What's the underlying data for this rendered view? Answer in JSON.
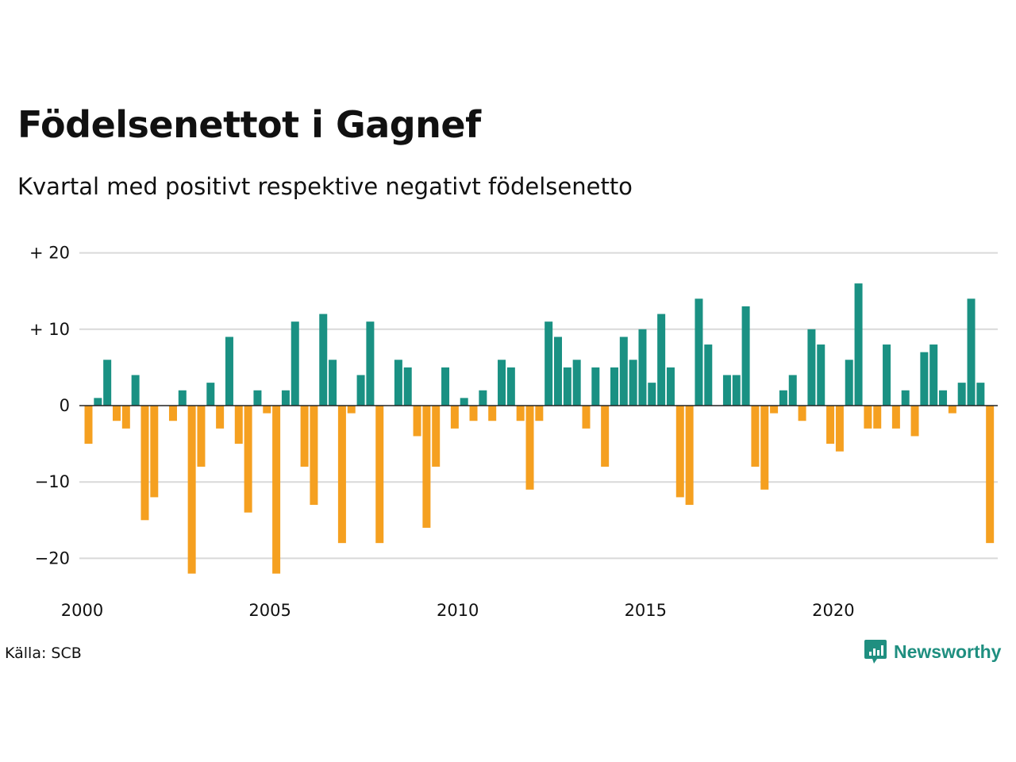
{
  "header": {
    "title": "Födelsenettot i Gagnef",
    "subtitle": "Kvartal med positivt respektive negativt födelsenetto"
  },
  "footer": {
    "source": "Källa: SCB",
    "brand": "Newsworthy",
    "brand_icon": "newsworthy-logo-icon"
  },
  "colors": {
    "positive": "#1a9183",
    "negative": "#f5a020",
    "grid": "#d9d9d9",
    "zero_line": "#222222",
    "brand": "#1f8f80"
  },
  "chart_data": {
    "type": "bar",
    "title": "Födelsenettot i Gagnef",
    "subtitle": "Kvartal med positivt respektive negativt födelsenetto",
    "xlabel": "",
    "ylabel": "",
    "ylim": [
      -24,
      22
    ],
    "y_ticks": [
      20,
      10,
      0,
      -10,
      -20
    ],
    "y_tick_labels": [
      "+ 20",
      "+ 10",
      "0",
      "−10",
      "−20"
    ],
    "x_ticks": [
      2000,
      2005,
      2010,
      2015,
      2020
    ],
    "x_tick_labels": [
      "2000",
      "2005",
      "2010",
      "2015",
      "2020"
    ],
    "grid": true,
    "legend": "none",
    "start_year": 2000,
    "start_quarter": 1,
    "periods_per_year": 4,
    "values": [
      -5,
      1,
      6,
      -2,
      -3,
      4,
      -15,
      -12,
      0,
      -2,
      2,
      -22,
      -8,
      3,
      -3,
      9,
      -5,
      -14,
      2,
      -1,
      -22,
      2,
      11,
      -8,
      -13,
      12,
      6,
      -18,
      -1,
      4,
      11,
      -18,
      0,
      6,
      5,
      -4,
      -16,
      -8,
      5,
      -3,
      1,
      -2,
      2,
      -2,
      6,
      5,
      -2,
      -11,
      -2,
      11,
      9,
      5,
      6,
      -3,
      5,
      -8,
      5,
      9,
      6,
      10,
      3,
      12,
      5,
      -12,
      -13,
      14,
      8,
      0,
      4,
      4,
      13,
      -8,
      -11,
      -1,
      2,
      4,
      -2,
      10,
      8,
      -5,
      -6,
      6,
      16,
      -3,
      -3,
      8,
      -3,
      2,
      -4,
      7,
      8,
      2,
      -1,
      3,
      14,
      3,
      -18
    ]
  }
}
